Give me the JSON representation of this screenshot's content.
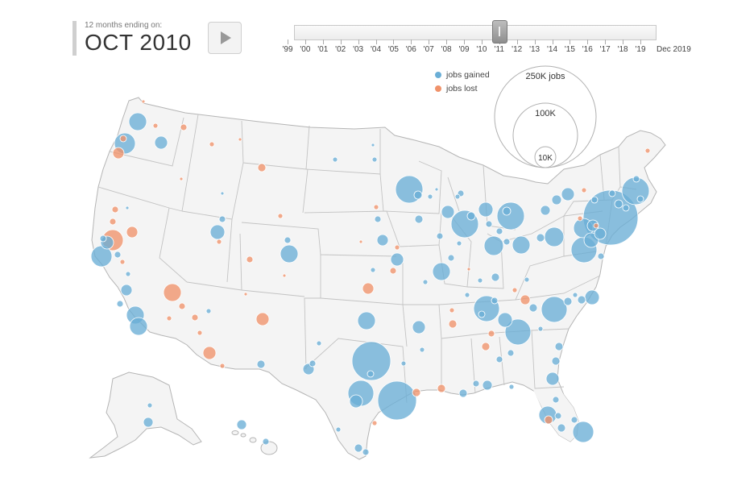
{
  "header": {
    "caption": "12 months ending on:",
    "date": "OCT 2010"
  },
  "controls": {
    "play_icon": "play-icon",
    "timeline_labels": [
      "'99",
      "'00",
      "'01",
      "'02",
      "'03",
      "'04",
      "'05",
      "'06",
      "'07",
      "'08",
      "'09",
      "'10",
      "'11",
      "'12",
      "'13",
      "'14",
      "'15",
      "'16",
      "'17",
      "'18",
      "'19"
    ],
    "timeline_end": "Dec 2019",
    "slider_value": "Oct 2010"
  },
  "legend": {
    "gained_label": "jobs gained",
    "lost_label": "jobs lost",
    "size_labels": [
      "250K jobs",
      "100K",
      "10K"
    ]
  },
  "colors": {
    "gained": "#6aaed6",
    "lost": "#f0926a",
    "land": "#f4f4f4",
    "border": "#b9b9b9"
  }
}
